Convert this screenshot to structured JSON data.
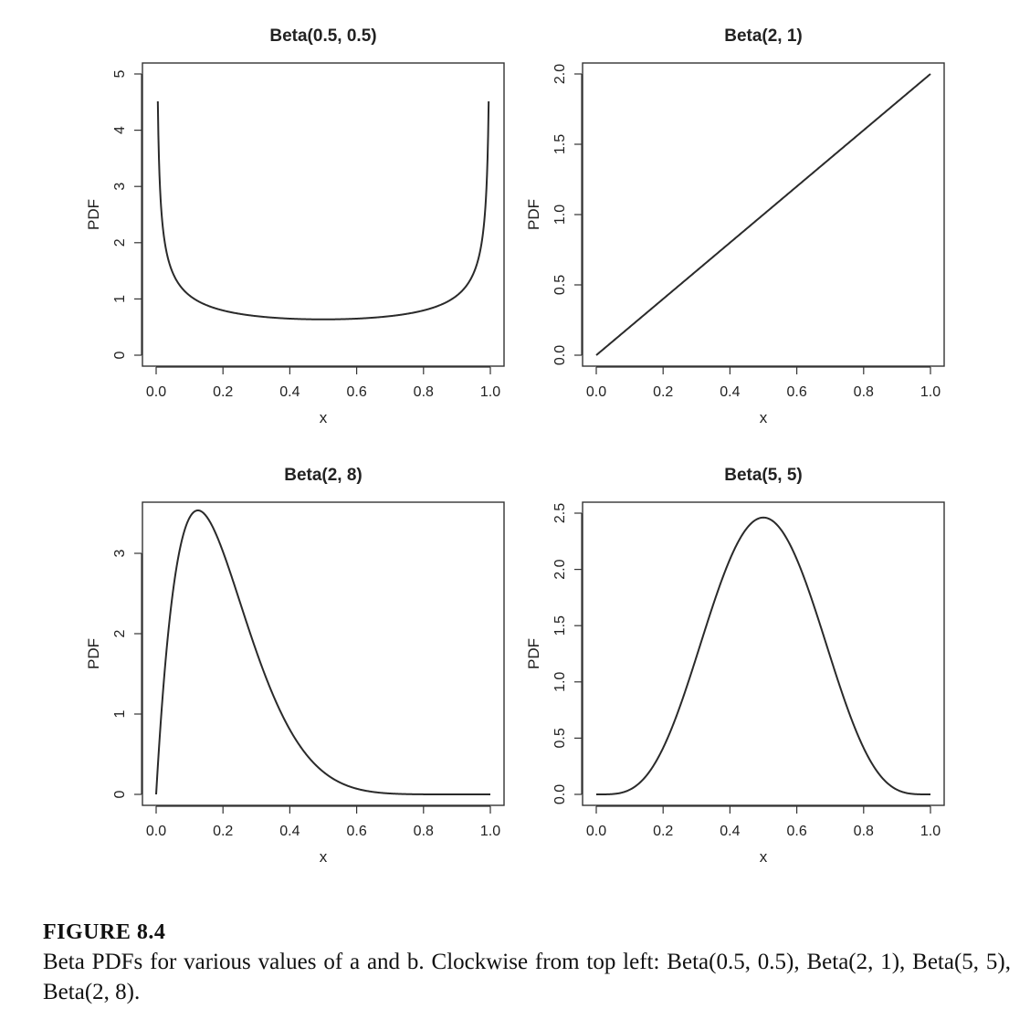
{
  "chart_data": [
    {
      "type": "line",
      "title": "Beta(0.5, 0.5)",
      "a": 0.5,
      "b": 0.5,
      "xlabel": "x",
      "ylabel": "PDF",
      "xlim": [
        0,
        1
      ],
      "ylim": [
        0,
        5
      ],
      "xticks": [
        "0.0",
        "0.2",
        "0.4",
        "0.6",
        "0.8",
        "1.0"
      ],
      "yticks": [
        "0",
        "1",
        "2",
        "3",
        "4",
        "5"
      ],
      "x_range": [
        0.005,
        0.995
      ]
    },
    {
      "type": "line",
      "title": "Beta(2, 1)",
      "a": 2,
      "b": 1,
      "xlabel": "x",
      "ylabel": "PDF",
      "xlim": [
        0,
        1
      ],
      "ylim": [
        0,
        2
      ],
      "xticks": [
        "0.0",
        "0.2",
        "0.4",
        "0.6",
        "0.8",
        "1.0"
      ],
      "yticks": [
        "0.0",
        "0.5",
        "1.0",
        "1.5",
        "2.0"
      ],
      "x_range": [
        0,
        1
      ]
    },
    {
      "type": "line",
      "title": "Beta(2, 8)",
      "a": 2,
      "b": 8,
      "xlabel": "x",
      "ylabel": "PDF",
      "xlim": [
        0,
        1
      ],
      "ylim": [
        0,
        3.5
      ],
      "xticks": [
        "0.0",
        "0.2",
        "0.4",
        "0.6",
        "0.8",
        "1.0"
      ],
      "yticks": [
        "0",
        "1",
        "2",
        "3"
      ],
      "x_range": [
        0,
        1
      ]
    },
    {
      "type": "line",
      "title": "Beta(5, 5)",
      "a": 5,
      "b": 5,
      "xlabel": "x",
      "ylabel": "PDF",
      "xlim": [
        0,
        1
      ],
      "ylim": [
        0,
        2.5
      ],
      "xticks": [
        "0.0",
        "0.2",
        "0.4",
        "0.6",
        "0.8",
        "1.0"
      ],
      "yticks": [
        "0.0",
        "0.5",
        "1.0",
        "1.5",
        "2.0",
        "2.5"
      ],
      "x_range": [
        0,
        1
      ]
    }
  ],
  "caption": {
    "title": "FIGURE 8.4",
    "text": "Beta PDFs for various values of a and b. Clockwise from top left: Beta(0.5, 0.5), Beta(2, 1), Beta(5, 5), Beta(2, 8)."
  }
}
